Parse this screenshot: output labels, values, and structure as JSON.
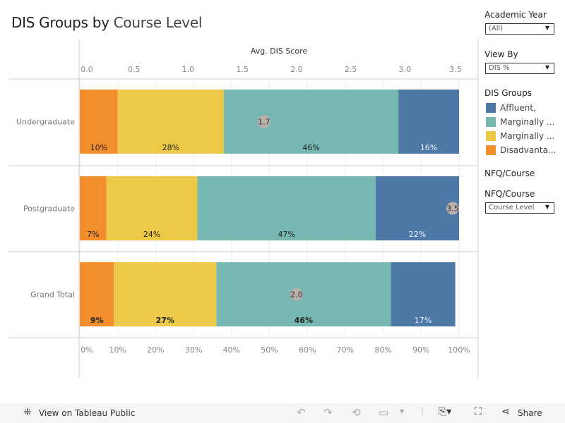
{
  "title": {
    "bold": "DIS Groups by",
    "light": "Course Level"
  },
  "filters": {
    "academic_year": {
      "label": "Academic Year",
      "value": "(All)"
    },
    "view_by": {
      "label": "View By",
      "value": "DIS %"
    },
    "nfq_heading": "NFQ/Course",
    "nfq_course": {
      "label": "NFQ/Course",
      "value": "Course Level"
    }
  },
  "legend": {
    "title": "DIS Groups",
    "items": [
      {
        "label": "Affluent,",
        "color": "#4e79a7"
      },
      {
        "label": "Marginally ...",
        "color": "#76b7b2"
      },
      {
        "label": "Marginally ...",
        "color": "#edc948"
      },
      {
        "label": "Disadvanta...",
        "color": "#f28e2b"
      }
    ]
  },
  "chart_data": {
    "type": "bar",
    "orientation": "horizontal",
    "stacked": "100%",
    "categories": [
      "Undergraduate",
      "Postgraduate",
      "Grand Total"
    ],
    "series": [
      {
        "name": "Disadvanta...",
        "color": "#f28e2b",
        "values": [
          10,
          7,
          9
        ]
      },
      {
        "name": "Marginally ...",
        "color": "#edc948",
        "values": [
          28,
          24,
          27
        ]
      },
      {
        "name": "Marginally ...",
        "color": "#76b7b2",
        "values": [
          46,
          47,
          46
        ]
      },
      {
        "name": "Affluent,",
        "color": "#4e79a7",
        "values": [
          16,
          22,
          17
        ]
      }
    ],
    "bottom_axis": {
      "ticks": [
        "0%",
        "10%",
        "20%",
        "30%",
        "40%",
        "50%",
        "60%",
        "70%",
        "80%",
        "90%",
        "100%"
      ],
      "range": [
        0,
        100
      ]
    },
    "top_axis": {
      "label": "Avg. DIS Score",
      "ticks": [
        "0.0",
        "0.5",
        "1.0",
        "1.5",
        "2.0",
        "2.5",
        "3.0",
        "3.5"
      ],
      "range": [
        0,
        3.5
      ]
    },
    "avg_dis_score": {
      "values": [
        1.7,
        3.5,
        2.0
      ],
      "labels": [
        "1.7",
        "3.5",
        "2.0"
      ]
    },
    "grid": true
  },
  "toolbar": {
    "view_label": "View on Tableau Public",
    "share_label": "Share"
  }
}
